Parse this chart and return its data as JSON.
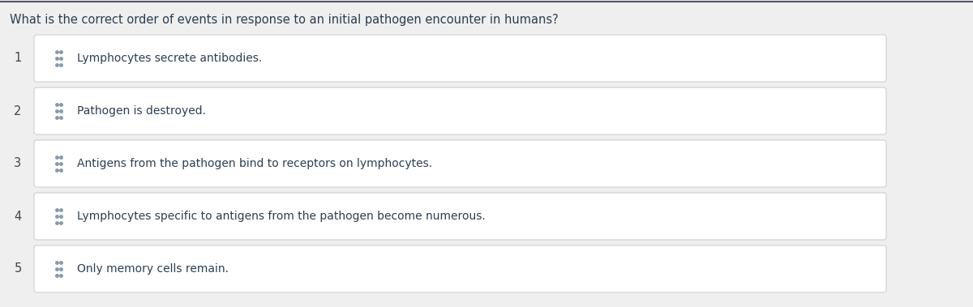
{
  "title": "What is the correct order of events in response to an initial pathogen encounter in humans?",
  "title_fontsize": 10.5,
  "title_color": "#2c3e50",
  "background_color": "#efefef",
  "box_fill_color": "#ffffff",
  "box_edge_color": "#d0d0d0",
  "number_color": "#444444",
  "text_color": "#2c3e50",
  "dot_color": "#8899aa",
  "top_bar_color": "#555566",
  "items": [
    {
      "number": "1",
      "text": "Lymphocytes secrete antibodies."
    },
    {
      "number": "2",
      "text": "Pathogen is destroyed."
    },
    {
      "number": "3",
      "text": "Antigens from the pathogen bind to receptors on lymphocytes."
    },
    {
      "number": "4",
      "text": "Lymphocytes specific to antigens from the pathogen become numerous."
    },
    {
      "number": "5",
      "text": "Only memory cells remain."
    }
  ],
  "item_fontsize": 10.0,
  "number_fontsize": 10.5
}
